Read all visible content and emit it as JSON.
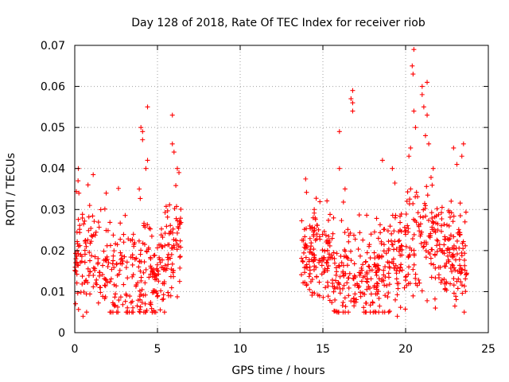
{
  "chart_data": {
    "type": "scatter",
    "title": "Day 128 of 2018, Rate Of TEC Index for receiver riob",
    "xlabel": "GPS time / hours",
    "ylabel": "ROTI / TECUs",
    "xlim": [
      0,
      25
    ],
    "ylim": [
      0,
      0.07
    ],
    "xticks": [
      0,
      5,
      10,
      15,
      20,
      25
    ],
    "xtick_labels": [
      "0",
      "5",
      "10",
      "15",
      "20",
      "25"
    ],
    "yticks": [
      0,
      0.01,
      0.02,
      0.03,
      0.04,
      0.05,
      0.06,
      0.07
    ],
    "ytick_labels": [
      "0",
      "0.01",
      "0.02",
      "0.03",
      "0.04",
      "0.05",
      "0.06",
      "0.07"
    ],
    "grid": true,
    "marker": "+",
    "color": "#ff0000",
    "series": [
      {
        "name": "ROTI",
        "segments": [
          {
            "x_range": [
              0.0,
              6.5
            ],
            "base_range": [
              0.006,
              0.024
            ],
            "points_per_hour": 60,
            "trend": [
              [
                0,
                0.016
              ],
              [
                1,
                0.018
              ],
              [
                2,
                0.015
              ],
              [
                3,
                0.013
              ],
              [
                4,
                0.012
              ],
              [
                5,
                0.014
              ],
              [
                6,
                0.02
              ],
              [
                6.5,
                0.022
              ]
            ]
          },
          {
            "x_range": [
              13.7,
              23.7
            ],
            "base_range": [
              0.006,
              0.026
            ],
            "points_per_hour": 65,
            "trend": [
              [
                13.7,
                0.018
              ],
              [
                14.5,
                0.02
              ],
              [
                15,
                0.018
              ],
              [
                16,
                0.015
              ],
              [
                17,
                0.012
              ],
              [
                18,
                0.013
              ],
              [
                19,
                0.016
              ],
              [
                20,
                0.02
              ],
              [
                21,
                0.024
              ],
              [
                22,
                0.02
              ],
              [
                23,
                0.018
              ],
              [
                23.7,
                0.016
              ]
            ]
          }
        ],
        "outliers": [
          {
            "x": 0.2,
            "y": 0.037
          },
          {
            "x": 0.25,
            "y": 0.034
          },
          {
            "x": 0.5,
            "y": 0.004
          },
          {
            "x": 0.8,
            "y": 0.036
          },
          {
            "x": 0.9,
            "y": 0.031
          },
          {
            "x": 1.9,
            "y": 0.034
          },
          {
            "x": 3.9,
            "y": 0.035
          },
          {
            "x": 4.0,
            "y": 0.05
          },
          {
            "x": 4.1,
            "y": 0.049
          },
          {
            "x": 4.1,
            "y": 0.047
          },
          {
            "x": 4.3,
            "y": 0.04
          },
          {
            "x": 4.4,
            "y": 0.042
          },
          {
            "x": 4.4,
            "y": 0.055
          },
          {
            "x": 5.9,
            "y": 0.053
          },
          {
            "x": 5.9,
            "y": 0.046
          },
          {
            "x": 6.0,
            "y": 0.044
          },
          {
            "x": 6.2,
            "y": 0.04
          },
          {
            "x": 6.3,
            "y": 0.039
          },
          {
            "x": 16.0,
            "y": 0.049
          },
          {
            "x": 16.0,
            "y": 0.04
          },
          {
            "x": 16.8,
            "y": 0.059
          },
          {
            "x": 16.8,
            "y": 0.056
          },
          {
            "x": 16.7,
            "y": 0.057
          },
          {
            "x": 16.8,
            "y": 0.054
          },
          {
            "x": 19.2,
            "y": 0.04
          },
          {
            "x": 18.6,
            "y": 0.042
          },
          {
            "x": 20.2,
            "y": 0.043
          },
          {
            "x": 20.4,
            "y": 0.065
          },
          {
            "x": 20.45,
            "y": 0.063
          },
          {
            "x": 20.5,
            "y": 0.069
          },
          {
            "x": 20.5,
            "y": 0.054
          },
          {
            "x": 20.6,
            "y": 0.05
          },
          {
            "x": 20.3,
            "y": 0.045
          },
          {
            "x": 21.0,
            "y": 0.06
          },
          {
            "x": 21.0,
            "y": 0.058
          },
          {
            "x": 21.1,
            "y": 0.055
          },
          {
            "x": 21.3,
            "y": 0.061
          },
          {
            "x": 21.3,
            "y": 0.053
          },
          {
            "x": 21.4,
            "y": 0.046
          },
          {
            "x": 21.2,
            "y": 0.048
          },
          {
            "x": 22.9,
            "y": 0.045
          },
          {
            "x": 23.1,
            "y": 0.041
          },
          {
            "x": 23.5,
            "y": 0.046
          },
          {
            "x": 23.4,
            "y": 0.043
          },
          {
            "x": 19.5,
            "y": 0.004
          },
          {
            "x": 21.8,
            "y": 0.006
          }
        ]
      }
    ]
  }
}
